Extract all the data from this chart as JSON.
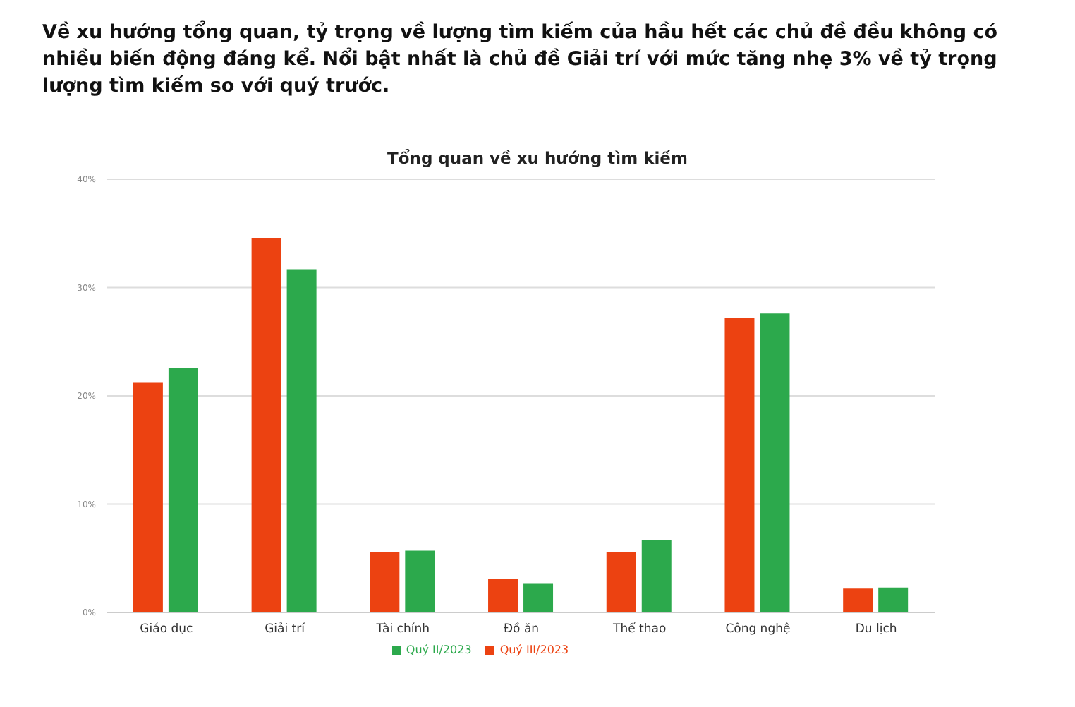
{
  "chart_data": {
    "type": "bar",
    "title": "Tổng quan về xu hướng tìm kiếm",
    "subtitle": "Về xu hướng tổng quan, tỷ trọng về lượng tìm kiếm của hầu hết các chủ đề đều không có nhiều biến động đáng kể. Nổi bật nhất là chủ đề Giải trí với mức tăng nhẹ 3% về tỷ trọng lượng tìm kiếm so với quý trước.",
    "categories": [
      "Giáo dục",
      "Giải trí",
      "Tài chính",
      "Đồ ăn",
      "Thể thao",
      "Công nghệ",
      "Du lịch"
    ],
    "series": [
      {
        "name": "Quý III/2023",
        "color": "#ec4211",
        "values": [
          21.2,
          34.6,
          5.6,
          3.1,
          5.6,
          27.2,
          2.2
        ]
      },
      {
        "name": "Quý II/2023",
        "color": "#2ca94c",
        "values": [
          22.6,
          31.7,
          5.7,
          2.7,
          6.7,
          27.6,
          2.3
        ]
      }
    ],
    "ylim": [
      0,
      40
    ],
    "yticks": [
      {
        "value": 0,
        "label": "0%"
      },
      {
        "value": 10,
        "label": "10%"
      },
      {
        "value": 20,
        "label": "20%"
      },
      {
        "value": 30,
        "label": "30%"
      },
      {
        "value": 40,
        "label": "40%"
      }
    ],
    "grid": "y",
    "legend": "bottom"
  }
}
